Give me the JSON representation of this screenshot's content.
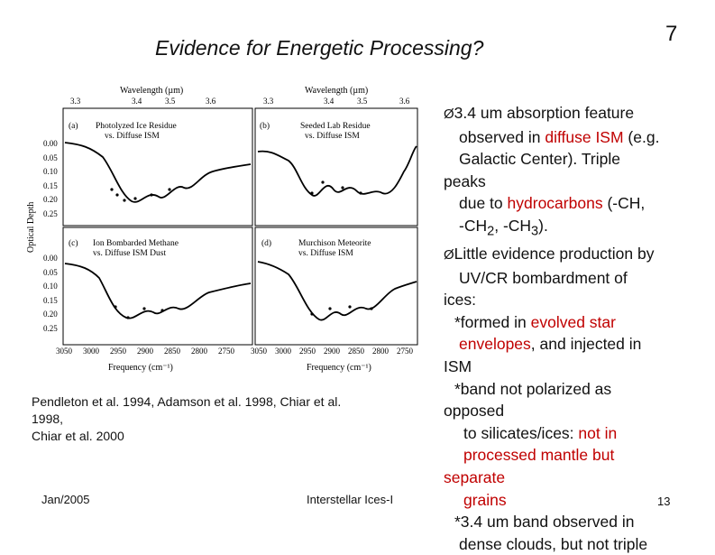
{
  "slide": {
    "title": "Evidence for Energetic Processing?",
    "page_number": "7",
    "slide_number": "13",
    "date": "Jan/2005",
    "footer": "Interstellar Ices-I"
  },
  "figure": {
    "top_axis_label": "Wavelength (µm)",
    "top_ticks": [
      "3.3",
      "3.4",
      "3.5",
      "3.6"
    ],
    "y_label": "Optical Depth",
    "y_ticks": [
      "0.00",
      "0.05",
      "0.10",
      "0.15",
      "0.20",
      "0.25"
    ],
    "x_label": "Frequency (cm⁻¹)",
    "x_ticks": [
      "3050",
      "3000",
      "2950",
      "2900",
      "2850",
      "2800",
      "2750"
    ],
    "panels": [
      {
        "tag": "(a)",
        "line1": "Photolyzed Ice Residue",
        "line2": "vs. Diffuse ISM"
      },
      {
        "tag": "(b)",
        "line1": "Seeded Lab Residue",
        "line2": "vs. Diffuse ISM"
      },
      {
        "tag": "(c)",
        "line1": "Ion Bombarded Methane",
        "line2": "vs. Diffuse ISM Dust"
      },
      {
        "tag": "(d)",
        "line1": "Murchison Meteorite",
        "line2": "vs. Diffuse ISM"
      }
    ]
  },
  "caption": {
    "line1": "Pendleton et al. 1994, Adamson et al. 1998, Chiar et al.",
    "line2": "1998,",
    "line3": "Chiar et  al. 2000"
  },
  "bullets": {
    "arrow": "Ø",
    "l1": "3.4 um absorption feature",
    "l2a": "observed in ",
    "l2b": "diffuse ISM",
    "l2c": " (e.g.",
    "l3": "Galactic Center). Triple",
    "l4": "peaks",
    "l5a": "due to  ",
    "l5b": "hydrocarbons",
    "l5c": " (-CH,",
    "l6a": "-CH",
    "l6b": "2",
    "l6c": ", -CH",
    "l6d": "3",
    "l6e": ").",
    "l7": "Little evidence production by",
    "l8": "UV/CR bombardment of",
    "l9": "ices:",
    "l10a": "*formed in ",
    "l10b": "evolved star",
    "l11a": "envelopes",
    "l11b": ", and injected in",
    "l12": "ISM",
    "l13": "*band not polarized as",
    "l14": "opposed",
    "l15a": "to silicates/ices: ",
    "l15b": "not in",
    "l16": "processed mantle but",
    "l17": "separate",
    "l18": "grains",
    "l19": "*3.4 um band observed in",
    "l20": "dense clouds, but not triple"
  },
  "colors": {
    "accent": "#c00000",
    "text": "#111111"
  }
}
